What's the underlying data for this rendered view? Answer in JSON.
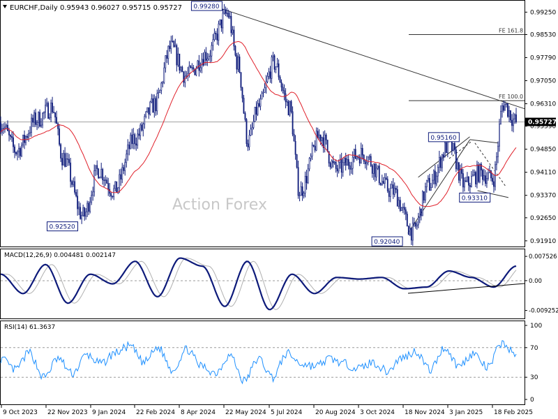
{
  "chart_data": [
    {
      "type": "candlestick",
      "header": "EURCHF,Daily  0.95943 0.96027 0.95715 0.95727",
      "watermark": "Action Forex",
      "ylim": [
        0.9175,
        0.9955
      ],
      "y_ticks": [
        0.9925,
        0.9853,
        0.9779,
        0.9705,
        0.9631,
        0.9559,
        0.9485,
        0.9411,
        0.9337,
        0.9265,
        0.9191
      ],
      "y_tick_labels": [
        "0.99250",
        "0.98530",
        "0.97790",
        "0.97050",
        "0.96310",
        "0.95590",
        "0.94850",
        "0.94110",
        "0.93370",
        "0.92650",
        "0.91910"
      ],
      "last_price_label": "0.95727",
      "last_price": 0.95727,
      "price_path_keys": [
        {
          "t": 0,
          "p": 0.957
        },
        {
          "t": 0.03,
          "p": 0.948
        },
        {
          "t": 0.07,
          "p": 0.958
        },
        {
          "t": 0.1,
          "p": 0.962
        },
        {
          "t": 0.12,
          "p": 0.946
        },
        {
          "t": 0.16,
          "p": 0.927
        },
        {
          "t": 0.19,
          "p": 0.942
        },
        {
          "t": 0.22,
          "p": 0.935
        },
        {
          "t": 0.26,
          "p": 0.952
        },
        {
          "t": 0.3,
          "p": 0.963
        },
        {
          "t": 0.33,
          "p": 0.981
        },
        {
          "t": 0.36,
          "p": 0.972
        },
        {
          "t": 0.4,
          "p": 0.979
        },
        {
          "t": 0.44,
          "p": 0.992
        },
        {
          "t": 0.46,
          "p": 0.976
        },
        {
          "t": 0.48,
          "p": 0.951
        },
        {
          "t": 0.5,
          "p": 0.962
        },
        {
          "t": 0.53,
          "p": 0.976
        },
        {
          "t": 0.56,
          "p": 0.962
        },
        {
          "t": 0.58,
          "p": 0.935
        },
        {
          "t": 0.62,
          "p": 0.953
        },
        {
          "t": 0.65,
          "p": 0.942
        },
        {
          "t": 0.7,
          "p": 0.947
        },
        {
          "t": 0.76,
          "p": 0.935
        },
        {
          "t": 0.8,
          "p": 0.922
        },
        {
          "t": 0.83,
          "p": 0.937
        },
        {
          "t": 0.87,
          "p": 0.95
        },
        {
          "t": 0.9,
          "p": 0.937
        },
        {
          "t": 0.93,
          "p": 0.941
        },
        {
          "t": 0.955,
          "p": 0.939
        },
        {
          "t": 0.975,
          "p": 0.963
        },
        {
          "t": 1,
          "p": 0.9573
        }
      ],
      "annotations": [
        {
          "label": "0.99280",
          "value": 0.9928
        },
        {
          "label": "0.92520",
          "value": 0.9252
        },
        {
          "label": "0.92040",
          "value": 0.9204
        },
        {
          "label": "0.95160",
          "value": 0.9516
        },
        {
          "label": "0.93310",
          "value": 0.9331
        }
      ],
      "levels": [
        {
          "label": "FE 161.8",
          "value": 0.9853
        },
        {
          "label": "FE 100.0",
          "value": 0.9641
        }
      ],
      "moving_average_color": "#e0202a",
      "candle_color": "#0d1a7a"
    },
    {
      "type": "line",
      "name": "MACD(12,26,9) 0.004481 0.002147",
      "ylim": [
        -0.0115,
        0.0095
      ],
      "y_tick_labels": [
        "0.007526",
        "0.00",
        "-0.009252"
      ],
      "y_ticks": [
        0.007526,
        0.0,
        -0.009252
      ],
      "series_colors": {
        "macd": "#0d1a7a",
        "signal": "#b0b0b0"
      },
      "key_values": [
        0.002,
        -0.004,
        0.005,
        -0.007,
        0.002,
        -0.001,
        0.006,
        -0.005,
        0.007,
        0.0045,
        -0.008,
        0.006,
        -0.009,
        0.002,
        -0.004,
        0.001,
        0.0005,
        0.001,
        -0.0025,
        -0.002,
        0.003,
        0.001,
        -0.002,
        0.0045
      ]
    },
    {
      "type": "line",
      "name": "RSI(14) 61.3637",
      "ylim": [
        0,
        100
      ],
      "y_ticks": [
        100,
        70,
        30,
        0
      ],
      "y_tick_labels": [
        "100",
        "70",
        "30",
        "0"
      ],
      "series_color": "#1e90ff",
      "key_values": [
        55,
        40,
        63,
        30,
        55,
        35,
        60,
        48,
        63,
        72,
        50,
        70,
        40,
        68,
        45,
        36,
        60,
        25,
        55,
        30,
        62,
        48,
        45,
        55,
        48,
        42,
        50,
        38,
        56,
        65,
        40,
        70,
        45,
        62,
        43,
        76,
        61
      ]
    }
  ],
  "x_axis": {
    "labels": [
      "9 Oct 2023",
      "22 Nov 2023",
      "9 Jan 2024",
      "22 Feb 2024",
      "8 Apr 2024",
      "22 May 2024",
      "5 Jul 2024",
      "20 Aug 2024",
      "3 Oct 2024",
      "18 Nov 2024",
      "3 Jan 2025",
      "18 Feb 2025"
    ]
  }
}
